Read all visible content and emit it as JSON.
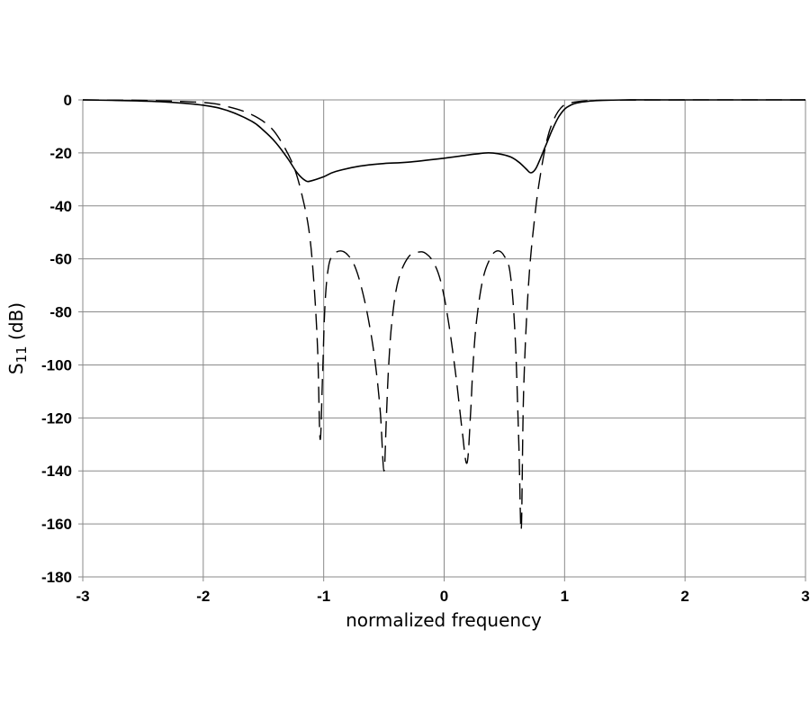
{
  "chart_data": {
    "type": "line",
    "title": "",
    "xlabel": "normalized frequency",
    "ylabel": "S11 (dB)",
    "ylabel_main": "S",
    "ylabel_sub": "11",
    "ylabel_unit": " (dB)",
    "xlim": [
      -3,
      3
    ],
    "ylim": [
      -180,
      0
    ],
    "xticks": [
      -3,
      -2,
      -1,
      0,
      1,
      2,
      3
    ],
    "yticks": [
      0,
      -20,
      -40,
      -60,
      -80,
      -100,
      -120,
      -140,
      -160,
      -180
    ],
    "grid": true,
    "legend": null,
    "series": [
      {
        "name": "solid",
        "style": "solid",
        "color": "#000000",
        "x": [
          -3.0,
          -2.6,
          -2.3,
          -2.0,
          -1.8,
          -1.6,
          -1.5,
          -1.4,
          -1.3,
          -1.22,
          -1.15,
          -1.1,
          -1.0,
          -0.9,
          -0.7,
          -0.5,
          -0.3,
          0.0,
          0.2,
          0.35,
          0.45,
          0.55,
          0.62,
          0.68,
          0.72,
          0.76,
          0.8,
          0.85,
          0.9,
          0.95,
          1.0,
          1.05,
          1.1,
          1.2,
          1.3,
          1.5,
          2.0,
          3.0
        ],
        "y": [
          0,
          -0.3,
          -0.8,
          -2.0,
          -4.0,
          -8.0,
          -11.5,
          -16.0,
          -22.0,
          -27.5,
          -30.5,
          -30.5,
          -29.0,
          -27.0,
          -25.0,
          -24.0,
          -23.5,
          -22.0,
          -20.8,
          -20.0,
          -20.3,
          -21.5,
          -23.5,
          -26.0,
          -27.5,
          -26.0,
          -22.0,
          -16.5,
          -11.0,
          -6.5,
          -3.5,
          -2.0,
          -1.2,
          -0.5,
          -0.2,
          0,
          0,
          0
        ]
      },
      {
        "name": "dashed",
        "style": "dashed",
        "color": "#000000",
        "x": [
          -3.0,
          -2.5,
          -2.0,
          -1.8,
          -1.6,
          -1.45,
          -1.35,
          -1.25,
          -1.18,
          -1.12,
          -1.08,
          -1.05,
          -1.03,
          -1.01,
          -0.99,
          -0.96,
          -0.92,
          -0.86,
          -0.8,
          -0.74,
          -0.68,
          -0.62,
          -0.57,
          -0.53,
          -0.5,
          -0.48,
          -0.46,
          -0.43,
          -0.38,
          -0.3,
          -0.22,
          -0.15,
          -0.08,
          -0.02,
          0.04,
          0.1,
          0.15,
          0.19,
          0.22,
          0.24,
          0.27,
          0.32,
          0.38,
          0.44,
          0.5,
          0.55,
          0.59,
          0.62,
          0.64,
          0.66,
          0.7,
          0.75,
          0.8,
          0.86,
          0.92,
          0.97,
          1.02,
          1.1,
          1.2,
          1.4,
          2.0,
          3.0
        ],
        "y": [
          0,
          -0.2,
          -1.0,
          -2.5,
          -5.5,
          -10.0,
          -16.0,
          -25.0,
          -36.0,
          -50.0,
          -70.0,
          -95.0,
          -128.0,
          -105.0,
          -78.0,
          -63.0,
          -58.5,
          -57.0,
          -58.5,
          -63.0,
          -72.0,
          -85.0,
          -100.0,
          -118.0,
          -140.0,
          -120.0,
          -100.0,
          -82.0,
          -68.0,
          -59.5,
          -57.5,
          -58.0,
          -62.0,
          -70.0,
          -85.0,
          -105.0,
          -125.0,
          -137.0,
          -118.0,
          -100.0,
          -83.0,
          -68.0,
          -60.0,
          -57.0,
          -59.0,
          -66.0,
          -90.0,
          -130.0,
          -162.0,
          -110.0,
          -70.0,
          -45.0,
          -28.0,
          -14.0,
          -6.5,
          -3.0,
          -1.5,
          -0.7,
          -0.3,
          -0.1,
          0,
          0
        ]
      }
    ]
  },
  "colors": {
    "background": "#ffffff",
    "grid": "#8a8a8a",
    "line": "#000000"
  }
}
